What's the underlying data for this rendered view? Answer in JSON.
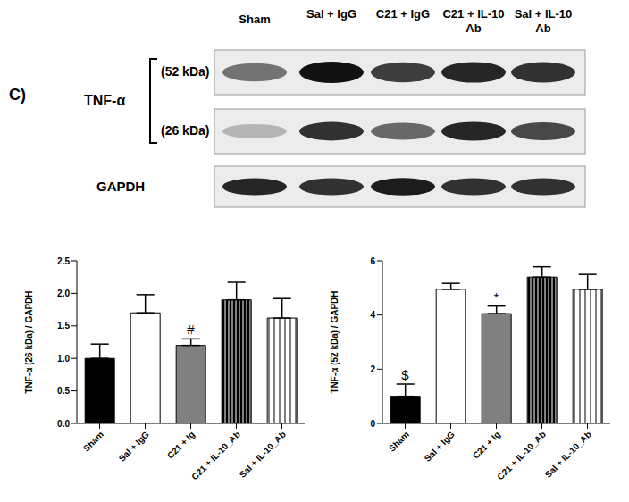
{
  "blot": {
    "panel_label": "C)",
    "protein": "TNF-α",
    "bands": [
      "(52 kDa)",
      "(26 kDa)"
    ],
    "control": "GAPDH",
    "lanes": [
      "Sham",
      "Sal + IgG",
      "C21 + IgG",
      "C21 + IL-10 Ab",
      "Sal + IL-10 Ab"
    ]
  },
  "chart_data": [
    {
      "type": "bar",
      "ylabel": "TNF-α (26 kDa) / GAPDH",
      "categories": [
        "Sham",
        "Sal + IgG",
        "C21 + Ig",
        "C21 + IL-10_Ab",
        "Sal + IL-10_Ab"
      ],
      "values": [
        1.0,
        1.7,
        1.2,
        1.9,
        1.62
      ],
      "errors": [
        0.22,
        0.28,
        0.1,
        0.27,
        0.3
      ],
      "colors": [
        "#000000",
        "#ffffff",
        "#808080",
        "#808080",
        "#ffffff"
      ],
      "ylim": [
        0,
        2.5
      ],
      "yticks": [
        {
          "value": 0,
          "label": "0.0"
        },
        0.5,
        {
          "value": 1,
          "label": "1.0"
        },
        1.5,
        {
          "value": 2,
          "label": "2.0"
        },
        2.5
      ],
      "annotations": [
        {
          "category": "C21 + Ig",
          "text": "#"
        }
      ]
    },
    {
      "type": "bar",
      "ylabel": "TNF-α (52 kDa) / GAPDH",
      "categories": [
        "Sham",
        "Sal + IgG",
        "C21 + Ig",
        "C21 + IL-10_Ab",
        "Sal + IL-10_Ab"
      ],
      "values": [
        1.0,
        4.95,
        4.05,
        5.4,
        4.95
      ],
      "errors": [
        0.45,
        0.22,
        0.28,
        0.38,
        0.55
      ],
      "colors": [
        "#000000",
        "#ffffff",
        "#808080",
        "#808080",
        "#ffffff"
      ],
      "ylim": [
        0,
        6
      ],
      "yticks": [
        0,
        2,
        4,
        6
      ],
      "annotations": [
        {
          "category": "Sham",
          "text": "$"
        },
        {
          "category": "C21 + Ig",
          "text": "*"
        }
      ]
    }
  ]
}
